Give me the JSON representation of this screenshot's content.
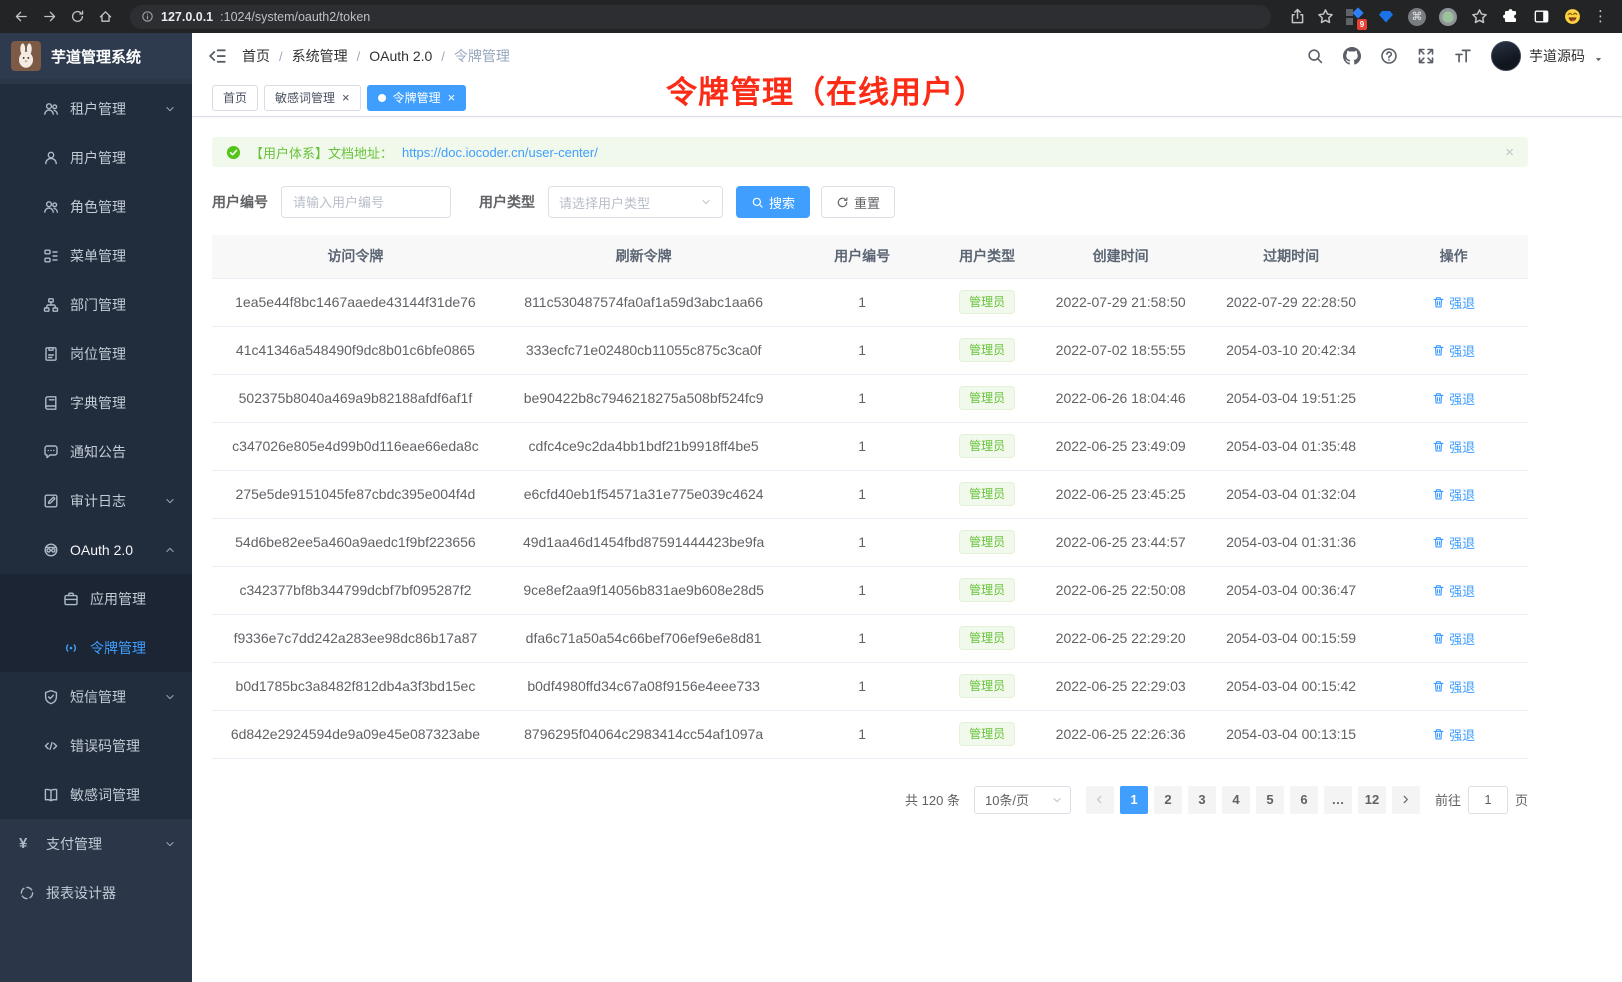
{
  "colors": {
    "accent": "#409eff",
    "success": "#67c23a",
    "annotation_red": "#fb2b16",
    "sidebar_bg": "#2b3648"
  },
  "browser": {
    "url_host": "127.0.0.1",
    "url_rest": ":1024/system/oauth2/token",
    "extension_badge": "9"
  },
  "sidebar": {
    "logo_title": "芋道管理系统",
    "items": [
      {
        "id": "tenant",
        "label": "租户管理",
        "icon": "people-icon",
        "arrow": "down",
        "level": 1
      },
      {
        "id": "user",
        "label": "用户管理",
        "icon": "user-icon",
        "level": 1
      },
      {
        "id": "role",
        "label": "角色管理",
        "icon": "people-icon",
        "level": 1
      },
      {
        "id": "menu",
        "label": "菜单管理",
        "icon": "menu-tree-icon",
        "level": 1
      },
      {
        "id": "dept",
        "label": "部门管理",
        "icon": "org-tree-icon",
        "level": 1
      },
      {
        "id": "post",
        "label": "岗位管理",
        "icon": "id-badge-icon",
        "level": 1
      },
      {
        "id": "dict",
        "label": "字典管理",
        "icon": "dictionary-book-icon",
        "level": 1
      },
      {
        "id": "notice",
        "label": "通知公告",
        "icon": "message-bubble-icon",
        "level": 1
      },
      {
        "id": "audit-log",
        "label": "审计日志",
        "icon": "audit-edit-icon",
        "arrow": "down",
        "level": 1
      },
      {
        "id": "oauth2",
        "label": "OAuth 2.0",
        "icon": "robot-icon",
        "arrow": "up",
        "level": 1,
        "expanded": true,
        "children": [
          {
            "id": "oauth2-app",
            "label": "应用管理",
            "icon": "briefcase-icon",
            "level": 2
          },
          {
            "id": "oauth2-token",
            "label": "令牌管理",
            "icon": "signal-icon",
            "level": 2,
            "active": true
          }
        ]
      },
      {
        "id": "sms",
        "label": "短信管理",
        "icon": "shield-check-icon",
        "arrow": "down",
        "level": 1
      },
      {
        "id": "error-code",
        "label": "错误码管理",
        "icon": "code-icon",
        "level": 1
      },
      {
        "id": "sensitive-word",
        "label": "敏感词管理",
        "icon": "open-book-icon",
        "level": 1
      },
      {
        "id": "pay",
        "label": "支付管理",
        "icon": "yen-icon",
        "arrow": "down",
        "level": 0
      },
      {
        "id": "report-designer",
        "label": "报表设计器",
        "icon": "segmented-circle-icon",
        "level": 0
      }
    ]
  },
  "header": {
    "breadcrumbs": [
      "首页",
      "系统管理",
      "OAuth 2.0",
      "令牌管理"
    ],
    "username": "芋道源码"
  },
  "tabs": [
    {
      "id": "home",
      "label": "首页",
      "closable": false,
      "active": false
    },
    {
      "id": "sensitive-word",
      "label": "敏感词管理",
      "closable": true,
      "active": false
    },
    {
      "id": "token",
      "label": "令牌管理",
      "closable": true,
      "active": true
    }
  ],
  "annotation": {
    "text": "令牌管理（在线用户）"
  },
  "alert": {
    "prefix": "【用户体系】文档地址：",
    "link": "https://doc.iocoder.cn/user-center/"
  },
  "filters": {
    "user_id_label": "用户编号",
    "user_id_placeholder": "请输入用户编号",
    "user_type_label": "用户类型",
    "user_type_placeholder": "请选择用户类型",
    "search_label": "搜索",
    "reset_label": "重置"
  },
  "table": {
    "columns": [
      "访问令牌",
      "刷新令牌",
      "用户编号",
      "用户类型",
      "创建时间",
      "过期时间",
      "操作"
    ],
    "action_label": "强退",
    "rows": [
      {
        "access_token": "1ea5e44f8bc1467aaede43144f31de76",
        "refresh_token": "811c530487574fa0af1a59d3abc1aa66",
        "user_id": "1",
        "user_type": "管理员",
        "create_time": "2022-07-29 21:58:50",
        "expire_time": "2022-07-29 22:28:50"
      },
      {
        "access_token": "41c41346a548490f9dc8b01c6bfe0865",
        "refresh_token": "333ecfc71e02480cb11055c875c3ca0f",
        "user_id": "1",
        "user_type": "管理员",
        "create_time": "2022-07-02 18:55:55",
        "expire_time": "2054-03-10 20:42:34"
      },
      {
        "access_token": "502375b8040a469a9b82188afdf6af1f",
        "refresh_token": "be90422b8c7946218275a508bf524fc9",
        "user_id": "1",
        "user_type": "管理员",
        "create_time": "2022-06-26 18:04:46",
        "expire_time": "2054-03-04 19:51:25"
      },
      {
        "access_token": "c347026e805e4d99b0d116eae66eda8c",
        "refresh_token": "cdfc4ce9c2da4bb1bdf21b9918ff4be5",
        "user_id": "1",
        "user_type": "管理员",
        "create_time": "2022-06-25 23:49:09",
        "expire_time": "2054-03-04 01:35:48"
      },
      {
        "access_token": "275e5de9151045fe87cbdc395e004f4d",
        "refresh_token": "e6cfd40eb1f54571a31e775e039c4624",
        "user_id": "1",
        "user_type": "管理员",
        "create_time": "2022-06-25 23:45:25",
        "expire_time": "2054-03-04 01:32:04"
      },
      {
        "access_token": "54d6be82ee5a460a9aedc1f9bf223656",
        "refresh_token": "49d1aa46d1454fbd87591444423be9fa",
        "user_id": "1",
        "user_type": "管理员",
        "create_time": "2022-06-25 23:44:57",
        "expire_time": "2054-03-04 01:31:36"
      },
      {
        "access_token": "c342377bf8b344799dcbf7bf095287f2",
        "refresh_token": "9ce8ef2aa9f14056b831ae9b608e28d5",
        "user_id": "1",
        "user_type": "管理员",
        "create_time": "2022-06-25 22:50:08",
        "expire_time": "2054-03-04 00:36:47"
      },
      {
        "access_token": "f9336e7c7dd242a283ee98dc86b17a87",
        "refresh_token": "dfa6c71a50a54c66bef706ef9e6e8d81",
        "user_id": "1",
        "user_type": "管理员",
        "create_time": "2022-06-25 22:29:20",
        "expire_time": "2054-03-04 00:15:59"
      },
      {
        "access_token": "b0d1785bc3a8482f812db4a3f3bd15ec",
        "refresh_token": "b0df4980ffd34c67a08f9156e4eee733",
        "user_id": "1",
        "user_type": "管理员",
        "create_time": "2022-06-25 22:29:03",
        "expire_time": "2054-03-04 00:15:42"
      },
      {
        "access_token": "6d842e2924594de9a09e45e087323abe",
        "refresh_token": "8796295f04064c2983414cc54af1097a",
        "user_id": "1",
        "user_type": "管理员",
        "create_time": "2022-06-25 22:26:36",
        "expire_time": "2054-03-04 00:13:15"
      }
    ]
  },
  "pagination": {
    "total_text": "共 120 条",
    "page_size": "10条/页",
    "pages": [
      "1",
      "2",
      "3",
      "4",
      "5",
      "6",
      "…",
      "12"
    ],
    "active_page": "1",
    "goto_label": "前往",
    "goto_value": "1",
    "goto_suffix": "页"
  }
}
